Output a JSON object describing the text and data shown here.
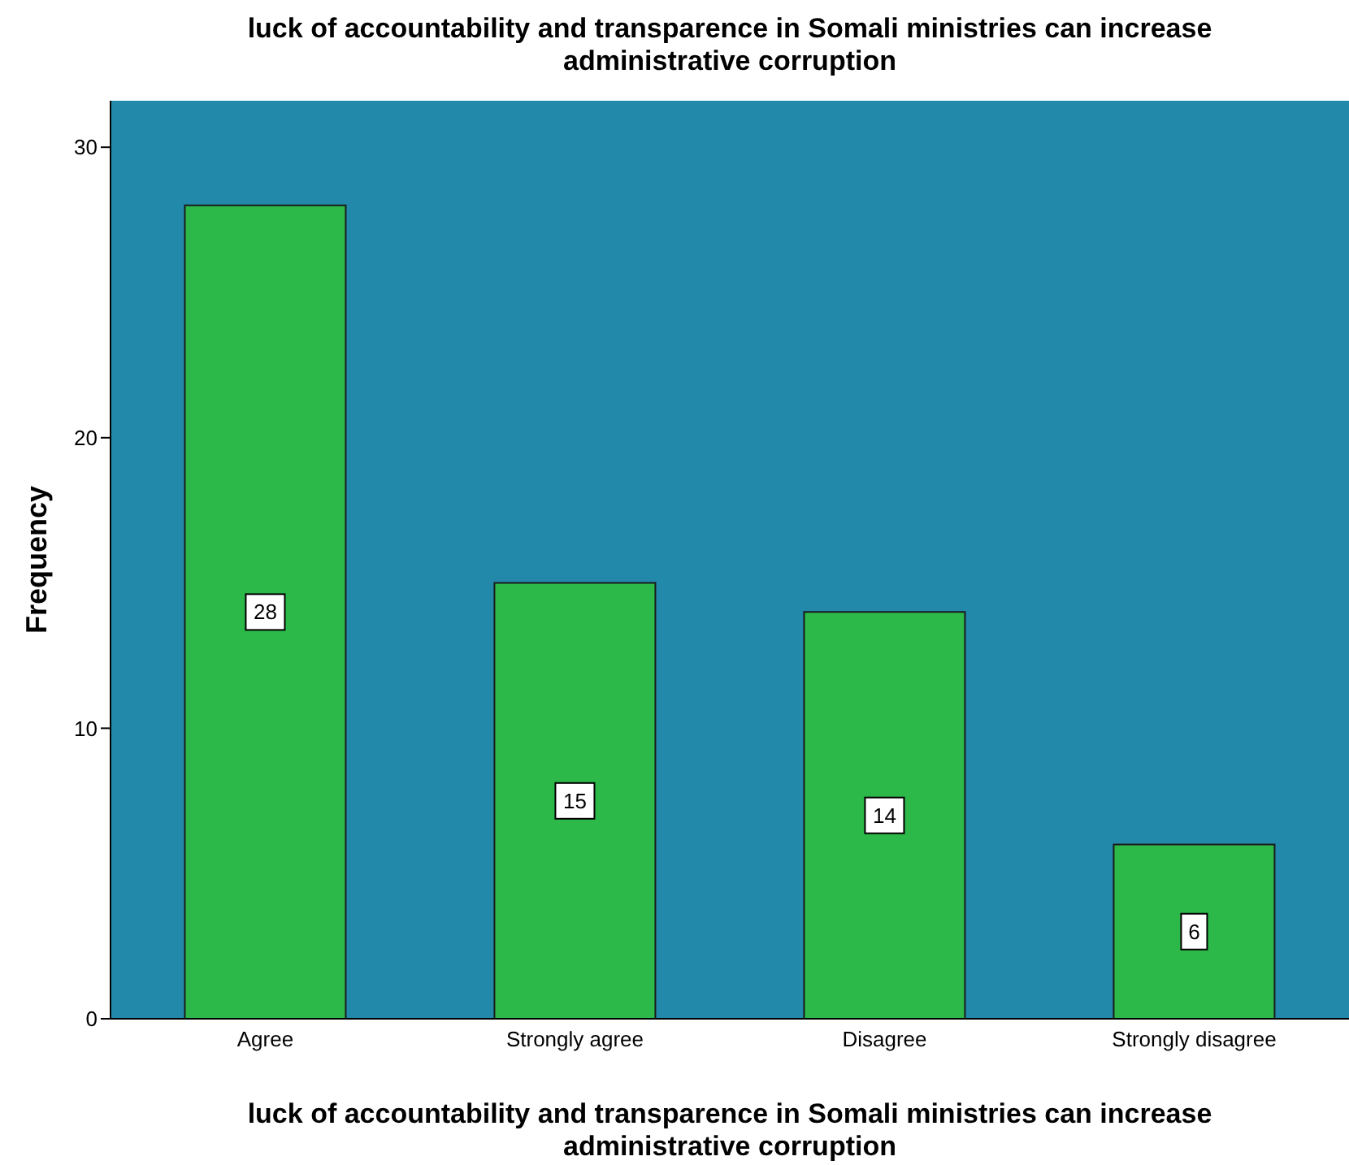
{
  "chart_data": {
    "type": "bar",
    "title": "luck of accountability and transparence in Somali ministries can increase administrative corruption",
    "xlabel": "luck of accountability and transparence in Somali ministries can increase administrative corruption",
    "ylabel": "Frequency",
    "categories": [
      "Agree",
      "Strongly agree",
      "Disagree",
      "Strongly disagree"
    ],
    "values": [
      28,
      15,
      14,
      6
    ],
    "color": "#2db84a",
    "ylim": [
      0,
      31.6
    ],
    "yticks": [
      0,
      10,
      20,
      30
    ],
    "data_labels": true,
    "grid": false
  }
}
